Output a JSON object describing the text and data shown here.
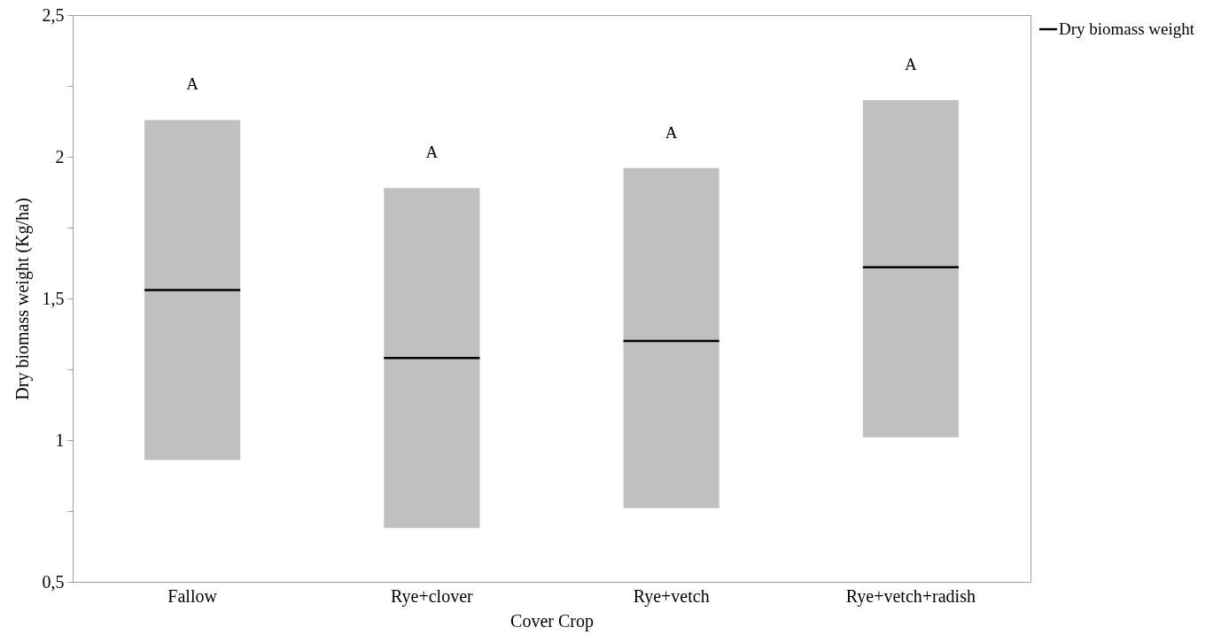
{
  "chart_data": {
    "type": "box",
    "xlabel": "Cover Crop",
    "ylabel": "Dry biomass weight (Kg/ha)",
    "categories": [
      "Fallow",
      "Rye+clover",
      "Rye+vetch",
      "Rye+vetch+radish"
    ],
    "series": [
      {
        "name": "Dry biomass weight",
        "color": "#000000",
        "colors": [
          "#c0c0c0",
          "#c0c0c0",
          "#c0c0c0",
          "#c0c0c0"
        ],
        "boxes": [
          {
            "low": 0.93,
            "q1": 0.93,
            "median": 1.53,
            "q3": 2.13,
            "high": 2.13
          },
          {
            "low": 0.69,
            "q1": 0.69,
            "median": 1.29,
            "q3": 1.89,
            "high": 1.89
          },
          {
            "low": 0.76,
            "q1": 0.76,
            "median": 1.35,
            "q3": 1.96,
            "high": 1.96
          },
          {
            "low": 1.01,
            "q1": 1.01,
            "median": 1.61,
            "q3": 2.2,
            "high": 2.2
          }
        ]
      }
    ],
    "ylim": [
      0.5,
      2.5
    ],
    "yticks": [
      {
        "value": 0.5,
        "label": "0,5"
      },
      {
        "value": 0.75,
        "label": null
      },
      1,
      {
        "value": 1.25,
        "label": null
      },
      {
        "value": 1.5,
        "label": "1,5"
      },
      {
        "value": 1.75,
        "label": null
      },
      2,
      {
        "value": 2.25,
        "label": null
      },
      {
        "value": 2.5,
        "label": "2,5"
      }
    ],
    "grid": false,
    "legend": "top right",
    "annotations": [
      "A",
      "A",
      "A",
      "A"
    ]
  }
}
